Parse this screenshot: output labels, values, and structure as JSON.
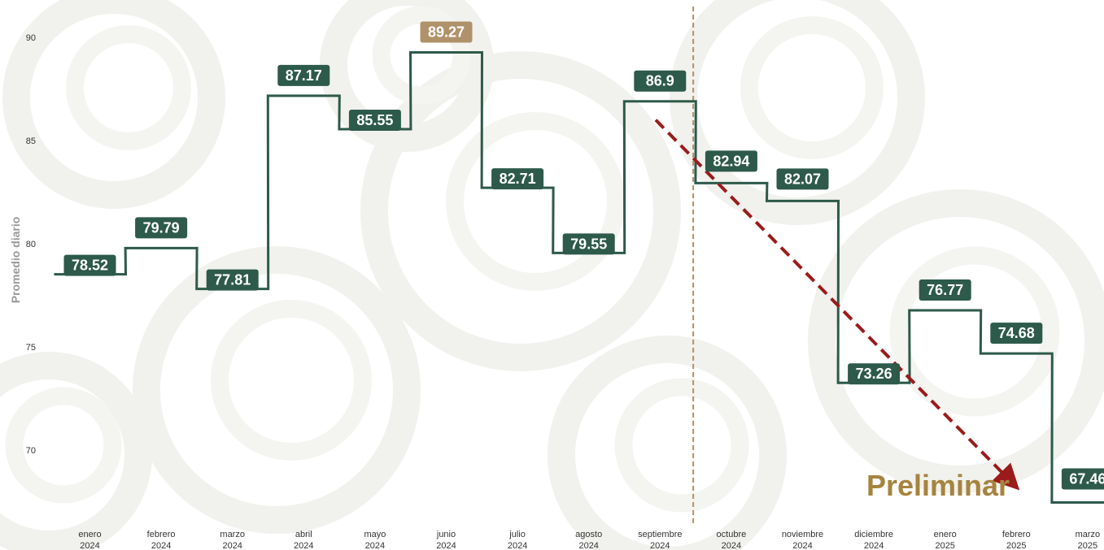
{
  "chart_data": {
    "type": "line",
    "style": "step",
    "categories": [
      [
        "enero",
        "2024"
      ],
      [
        "febrero",
        "2024"
      ],
      [
        "marzo",
        "2024"
      ],
      [
        "abril",
        "2024"
      ],
      [
        "mayo",
        "2024"
      ],
      [
        "junio",
        "2024"
      ],
      [
        "julio",
        "2024"
      ],
      [
        "agosto",
        "2024"
      ],
      [
        "septiembre",
        "2024"
      ],
      [
        "octubre",
        "2024"
      ],
      [
        "noviembre",
        "2024"
      ],
      [
        "diciembre",
        "2024"
      ],
      [
        "enero",
        "2025"
      ],
      [
        "febrero",
        "2025"
      ],
      [
        "marzo",
        "2025"
      ]
    ],
    "values": [
      78.52,
      79.79,
      77.81,
      87.17,
      85.55,
      89.27,
      82.71,
      79.55,
      86.9,
      82.94,
      82.07,
      73.26,
      76.77,
      74.68,
      67.46
    ],
    "labels": [
      "78.52",
      "79.79",
      "77.81",
      "87.17",
      "85.55",
      "89.27",
      "82.71",
      "79.55",
      "86.9",
      "82.94",
      "82.07",
      "73.26",
      "76.77",
      "74.68",
      "67.46"
    ],
    "highlight_index": 5,
    "ylabel": "Promedio diario",
    "xlabel": "",
    "ylim": [
      67,
      91
    ],
    "yticks": [
      70,
      75,
      80,
      85,
      90
    ],
    "grid": false,
    "legend": "none",
    "divider_between": [
      8,
      9
    ],
    "trend_arrow": {
      "from_value": 86,
      "to_value": 68.5
    },
    "annotation": "Preliminar",
    "colors": {
      "line": "#2d5a4a",
      "label_bg": "#2d5a4a",
      "highlight_bg": "#b0926a",
      "divider": "#b0926a",
      "trend": "#9b1b1b",
      "annotation": "#a6843e",
      "label_text": "#ffffff"
    }
  }
}
